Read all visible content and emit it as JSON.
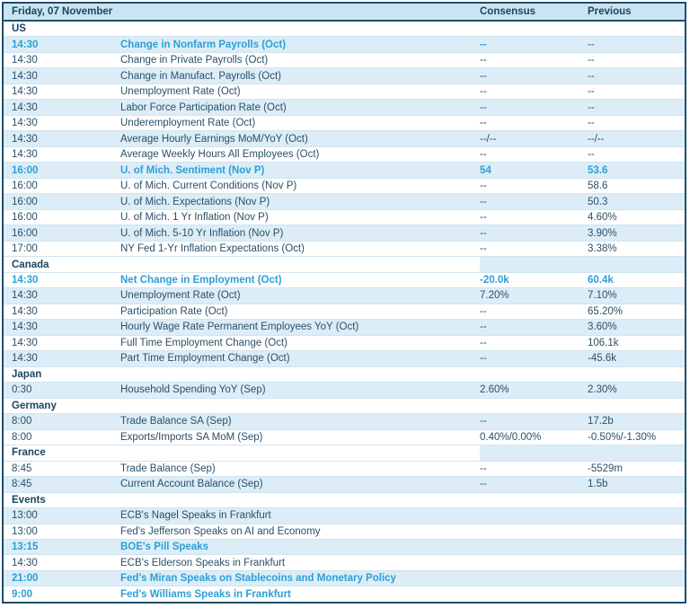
{
  "header": {
    "date_label": "Friday, 07 November",
    "consensus_label": "Consensus",
    "previous_label": "Previous"
  },
  "colors": {
    "border": "#1e4e6b",
    "header_background": "#cbe4f2",
    "shaded_row_background": "#dcedf7",
    "text": "#2a4f68",
    "highlight_text": "#2d9fd6"
  },
  "rows": [
    {
      "type": "section",
      "label": "US",
      "values_shaded": false
    },
    {
      "type": "data",
      "time": "14:30",
      "event": "Change in Nonfarm Payrolls (Oct)",
      "consensus": "--",
      "previous": "--",
      "highlight": true,
      "shaded": true
    },
    {
      "type": "data",
      "time": "14:30",
      "event": "Change in Private Payrolls (Oct)",
      "consensus": "--",
      "previous": "--",
      "highlight": false,
      "shaded": false
    },
    {
      "type": "data",
      "time": "14:30",
      "event": "Change in Manufact. Payrolls (Oct)",
      "consensus": "--",
      "previous": "--",
      "highlight": false,
      "shaded": true
    },
    {
      "type": "data",
      "time": "14:30",
      "event": "Unemployment Rate (Oct)",
      "consensus": "--",
      "previous": "--",
      "highlight": false,
      "shaded": false
    },
    {
      "type": "data",
      "time": "14:30",
      "event": "Labor Force Participation Rate (Oct)",
      "consensus": "--",
      "previous": "--",
      "highlight": false,
      "shaded": true
    },
    {
      "type": "data",
      "time": "14:30",
      "event": "Underemployment Rate (Oct)",
      "consensus": "--",
      "previous": "--",
      "highlight": false,
      "shaded": false
    },
    {
      "type": "data",
      "time": "14:30",
      "event": "Average Hourly Earnings MoM/YoY (Oct)",
      "consensus": "--/--",
      "previous": "--/--",
      "highlight": false,
      "shaded": true
    },
    {
      "type": "data",
      "time": "14:30",
      "event": "Average Weekly Hours All Employees (Oct)",
      "consensus": "--",
      "previous": "--",
      "highlight": false,
      "shaded": false
    },
    {
      "type": "data",
      "time": "16:00",
      "event": "U. of Mich. Sentiment (Nov P)",
      "consensus": "54",
      "previous": "53.6",
      "highlight": true,
      "shaded": true
    },
    {
      "type": "data",
      "time": "16:00",
      "event": "U. of Mich. Current Conditions (Nov P)",
      "consensus": "--",
      "previous": "58.6",
      "highlight": false,
      "shaded": false
    },
    {
      "type": "data",
      "time": "16:00",
      "event": "U. of Mich. Expectations (Nov P)",
      "consensus": "--",
      "previous": "50.3",
      "highlight": false,
      "shaded": true
    },
    {
      "type": "data",
      "time": "16:00",
      "event": "U. of Mich. 1 Yr Inflation (Nov P)",
      "consensus": "--",
      "previous": "4.60%",
      "highlight": false,
      "shaded": false
    },
    {
      "type": "data",
      "time": "16:00",
      "event": "U. of Mich. 5-10 Yr Inflation (Nov P)",
      "consensus": "--",
      "previous": "3.90%",
      "highlight": false,
      "shaded": true
    },
    {
      "type": "data",
      "time": "17:00",
      "event": "NY Fed 1-Yr Inflation Expectations (Oct)",
      "consensus": "--",
      "previous": "3.38%",
      "highlight": false,
      "shaded": false
    },
    {
      "type": "section",
      "label": "Canada",
      "values_shaded": true
    },
    {
      "type": "data",
      "time": "14:30",
      "event": "Net Change in Employment (Oct)",
      "consensus": "-20.0k",
      "previous": "60.4k",
      "highlight": true,
      "shaded": false
    },
    {
      "type": "data",
      "time": "14:30",
      "event": "Unemployment Rate (Oct)",
      "consensus": "7.20%",
      "previous": "7.10%",
      "highlight": false,
      "shaded": true
    },
    {
      "type": "data",
      "time": "14:30",
      "event": "Participation Rate (Oct)",
      "consensus": "--",
      "previous": "65.20%",
      "highlight": false,
      "shaded": false
    },
    {
      "type": "data",
      "time": "14:30",
      "event": "Hourly Wage Rate Permanent Employees YoY (Oct)",
      "consensus": "--",
      "previous": "3.60%",
      "highlight": false,
      "shaded": true
    },
    {
      "type": "data",
      "time": "14:30",
      "event": "Full Time Employment Change (Oct)",
      "consensus": "--",
      "previous": "106.1k",
      "highlight": false,
      "shaded": false
    },
    {
      "type": "data",
      "time": "14:30",
      "event": "Part Time Employment Change (Oct)",
      "consensus": "--",
      "previous": "-45.6k",
      "highlight": false,
      "shaded": true
    },
    {
      "type": "section",
      "label": "Japan",
      "values_shaded": false
    },
    {
      "type": "data",
      "time": "0:30",
      "event": "Household Spending YoY (Sep)",
      "consensus": "2.60%",
      "previous": "2.30%",
      "highlight": false,
      "shaded": true
    },
    {
      "type": "section",
      "label": "Germany",
      "values_shaded": false
    },
    {
      "type": "data",
      "time": "8:00",
      "event": "Trade Balance SA (Sep)",
      "consensus": "--",
      "previous": "17.2b",
      "highlight": false,
      "shaded": true
    },
    {
      "type": "data",
      "time": "8:00",
      "event": "Exports/Imports SA MoM (Sep)",
      "consensus": "0.40%/0.00%",
      "previous": "-0.50%/-1.30%",
      "highlight": false,
      "shaded": false
    },
    {
      "type": "section",
      "label": "France",
      "values_shaded": true
    },
    {
      "type": "data",
      "time": "8:45",
      "event": "Trade Balance (Sep)",
      "consensus": "--",
      "previous": "-5529m",
      "highlight": false,
      "shaded": false
    },
    {
      "type": "data",
      "time": "8:45",
      "event": "Current Account Balance (Sep)",
      "consensus": "--",
      "previous": "1.5b",
      "highlight": false,
      "shaded": true
    },
    {
      "type": "section",
      "label": "Events",
      "values_shaded": false
    },
    {
      "type": "data",
      "time": "13:00",
      "event": "ECB's Nagel Speaks in Frankfurt",
      "consensus": "",
      "previous": "",
      "highlight": false,
      "shaded": true
    },
    {
      "type": "data",
      "time": "13:00",
      "event": "Fed's Jefferson Speaks on AI and Economy",
      "consensus": "",
      "previous": "",
      "highlight": false,
      "shaded": false
    },
    {
      "type": "data",
      "time": "13:15",
      "event": "BOE's Pill Speaks",
      "consensus": "",
      "previous": "",
      "highlight": true,
      "shaded": true
    },
    {
      "type": "data",
      "time": "14:30",
      "event": "ECB's Elderson Speaks in Frankfurt",
      "consensus": "",
      "previous": "",
      "highlight": false,
      "shaded": false
    },
    {
      "type": "data",
      "time": "21:00",
      "event": "Fed's Miran Speaks on Stablecoins and Monetary Policy",
      "consensus": "",
      "previous": "",
      "highlight": true,
      "shaded": true
    },
    {
      "type": "data",
      "time": "9:00",
      "event": "Fed's Williams Speaks in Frankfurt",
      "consensus": "",
      "previous": "",
      "highlight": true,
      "shaded": false
    }
  ]
}
